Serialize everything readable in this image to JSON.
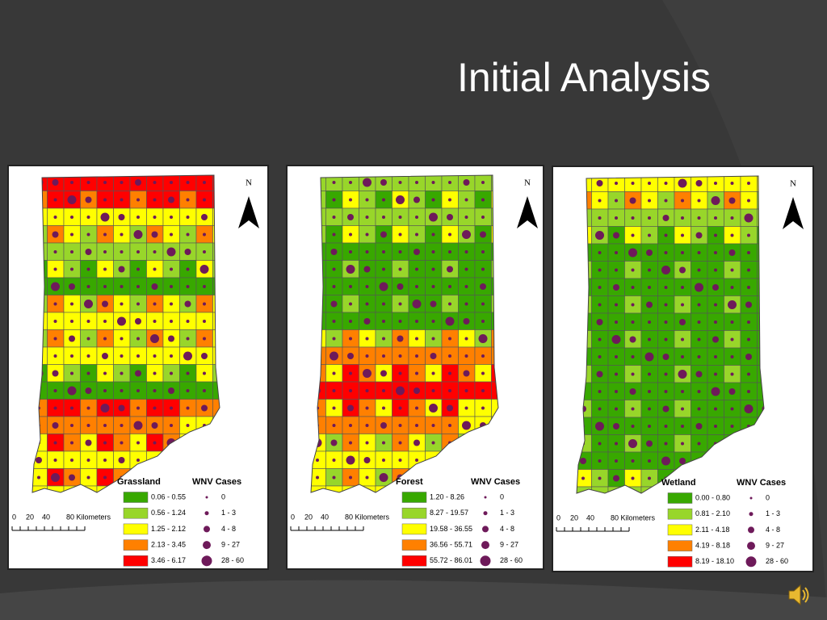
{
  "title": "Initial Analysis",
  "panels": [
    {
      "layer": "Grassland",
      "legend_title": "WNV Cases",
      "north": "N",
      "classes": [
        {
          "label": "0.06 - 0.55",
          "color": "#38a800"
        },
        {
          "label": "0.56 - 1.24",
          "color": "#98d62a"
        },
        {
          "label": "1.25 - 2.12",
          "color": "#ffff00"
        },
        {
          "label": "2.13 - 3.45",
          "color": "#ff8000"
        },
        {
          "label": "3.46 - 6.17",
          "color": "#ff0000"
        }
      ],
      "cases": [
        "0",
        "1 - 3",
        "4 - 8",
        "9 - 27",
        "28 - 60"
      ],
      "scale": [
        "0",
        "20",
        "40",
        "80 Kilometers"
      ]
    },
    {
      "layer": "Forest",
      "legend_title": "WNV Cases",
      "north": "N",
      "classes": [
        {
          "label": "1.20 - 8.26",
          "color": "#38a800"
        },
        {
          "label": "8.27 - 19.57",
          "color": "#98d62a"
        },
        {
          "label": "19.58 - 36.55",
          "color": "#ffff00"
        },
        {
          "label": "36.56 - 55.71",
          "color": "#ff8000"
        },
        {
          "label": "55.72 - 86.01",
          "color": "#ff0000"
        }
      ],
      "cases": [
        "0",
        "1 - 3",
        "4 - 8",
        "9 - 27",
        "28 - 60"
      ],
      "scale": [
        "0",
        "20",
        "40",
        "80 Kilometers"
      ]
    },
    {
      "layer": "Wetland",
      "legend_title": "WNV Cases",
      "north": "N",
      "classes": [
        {
          "label": "0.00 - 0.80",
          "color": "#38a800"
        },
        {
          "label": "0.81 - 2.10",
          "color": "#98d62a"
        },
        {
          "label": "2.11 - 4.18",
          "color": "#ffff00"
        },
        {
          "label": "4.19 - 8.18",
          "color": "#ff8000"
        },
        {
          "label": "8.19 - 18.10",
          "color": "#ff0000"
        }
      ],
      "cases": [
        "0",
        "1 - 3",
        "4 - 8",
        "9 - 27",
        "28 - 60"
      ],
      "scale": [
        "0",
        "20",
        "40",
        "80 Kilometers"
      ]
    }
  ]
}
